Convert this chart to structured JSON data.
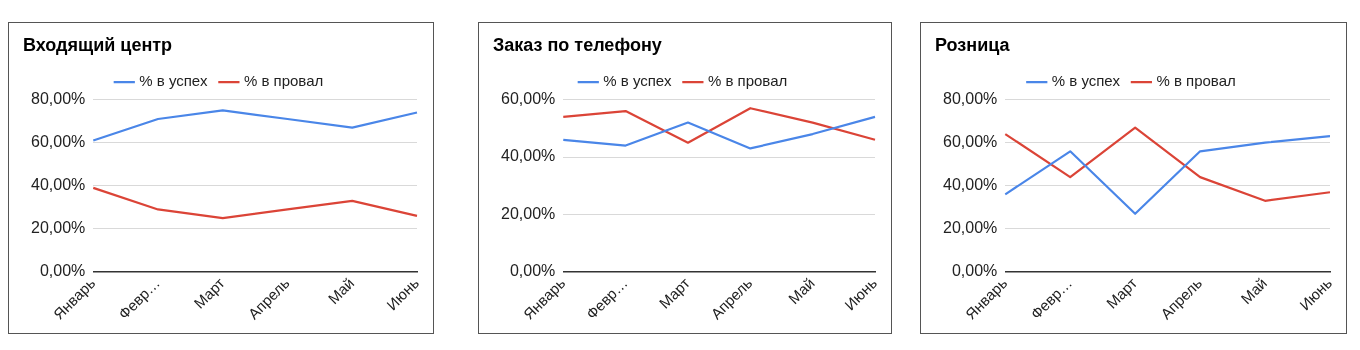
{
  "chart_data": [
    {
      "type": "line",
      "title": "Входящий центр",
      "categories": [
        "Январь",
        "Февр…",
        "Март",
        "Апрель",
        "Май",
        "Июнь"
      ],
      "series": [
        {
          "name": "% в успех",
          "color": "#4a86e8",
          "values": [
            61,
            71,
            75,
            71,
            67,
            74
          ]
        },
        {
          "name": "% в провал",
          "color": "#db4437",
          "values": [
            39,
            29,
            25,
            29,
            33,
            26
          ]
        }
      ],
      "ylim": [
        0,
        80
      ],
      "yticks": [
        {
          "value": 0,
          "label": "0,00%"
        },
        {
          "value": 20,
          "label": "20,00%"
        },
        {
          "value": 40,
          "label": "40,00%"
        },
        {
          "value": 60,
          "label": "60,00%"
        },
        {
          "value": 80,
          "label": "80,00%"
        }
      ],
      "grid": "y",
      "legend": "top",
      "marker": "none"
    },
    {
      "type": "line",
      "title": "Заказ по телефону",
      "categories": [
        "Январь",
        "Февр…",
        "Март",
        "Апрель",
        "Май",
        "Июнь"
      ],
      "series": [
        {
          "name": "% в успех",
          "color": "#4a86e8",
          "values": [
            46,
            44,
            52,
            43,
            48,
            54
          ]
        },
        {
          "name": "% в провал",
          "color": "#db4437",
          "values": [
            54,
            56,
            45,
            57,
            52,
            46
          ]
        }
      ],
      "ylim": [
        0,
        60
      ],
      "yticks": [
        {
          "value": 0,
          "label": "0,00%"
        },
        {
          "value": 20,
          "label": "20,00%"
        },
        {
          "value": 40,
          "label": "40,00%"
        },
        {
          "value": 60,
          "label": "60,00%"
        }
      ],
      "grid": "y",
      "legend": "top",
      "marker": "none"
    },
    {
      "type": "line",
      "title": "Розница",
      "categories": [
        "Январь",
        "Февр…",
        "Март",
        "Апрель",
        "Май",
        "Июнь"
      ],
      "series": [
        {
          "name": "% в успех",
          "color": "#4a86e8",
          "values": [
            36,
            56,
            27,
            56,
            60,
            63
          ]
        },
        {
          "name": "% в провал",
          "color": "#db4437",
          "values": [
            64,
            44,
            67,
            44,
            33,
            37
          ]
        }
      ],
      "ylim": [
        0,
        80
      ],
      "yticks": [
        {
          "value": 0,
          "label": "0,00%"
        },
        {
          "value": 20,
          "label": "20,00%"
        },
        {
          "value": 40,
          "label": "40,00%"
        },
        {
          "value": 60,
          "label": "60,00%"
        },
        {
          "value": 80,
          "label": "80,00%"
        }
      ],
      "grid": "y",
      "legend": "top",
      "marker": "none"
    }
  ]
}
